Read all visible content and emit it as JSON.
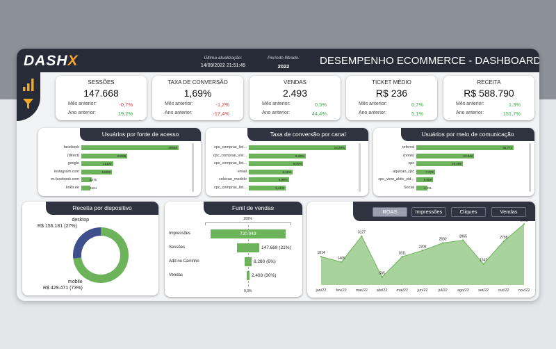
{
  "header": {
    "logo_text": "DASH",
    "logo_accent": "X",
    "updated_label": "Última atualização:",
    "updated_value": "14/09/2022 21:51:45",
    "period_label": "Período filtrado:",
    "period_value": "2022",
    "title_bold": "DESEMPENHO ECOMMERCE",
    "title_rest": " - DASHBOARD"
  },
  "kpis": [
    {
      "title": "SESSÕES",
      "value": "147.668",
      "mes_label": "Mês anterior:",
      "mes_value": "-0,7%",
      "ano_label": "Ano anterior:",
      "ano_value": "19,2%"
    },
    {
      "title": "TAXA DE CONVERSÃO",
      "value": "1,69%",
      "mes_label": "Mês anterior:",
      "mes_value": "-1,2%",
      "ano_label": "Ano anterior:",
      "ano_value": "-17,4%"
    },
    {
      "title": "VENDAS",
      "value": "2.493",
      "mes_label": "Mês anterior:",
      "mes_value": "0,5%",
      "ano_label": "Ano anterior:",
      "ano_value": "44,4%"
    },
    {
      "title": "TICKET MÉDIO",
      "value": "R$ 236",
      "mes_label": "Mês anterior:",
      "mes_value": "0,7%",
      "ano_label": "Ano anterior:",
      "ano_value": "5,1%"
    },
    {
      "title": "RECEITA",
      "value": "R$ 588.790",
      "mes_label": "Mês anterior:",
      "mes_value": "1,3%",
      "ano_label": "Ano anterior:",
      "ano_value": "151,7%"
    }
  ],
  "usuarios_fonte": {
    "title": "Usuários por fonte de acesso",
    "rows": [
      {
        "label": "facebook",
        "value": 49368,
        "text": "49368"
      },
      {
        "label": "(direct)",
        "value": 23368,
        "text": "23368"
      },
      {
        "label": "google",
        "value": 16102,
        "text": "16102"
      },
      {
        "label": "instagram.com",
        "value": 15508,
        "text": "15508"
      },
      {
        "label": "m.facebook.com",
        "value": 5376,
        "text": "5376"
      },
      {
        "label": "linktr.ee",
        "value": 4624,
        "text": "4624"
      }
    ]
  },
  "taxa_canal": {
    "title": "Taxa de conversão por canal",
    "rows": [
      {
        "label": "cpc_compras_list...",
        "value": 14.29,
        "text": "14,29%"
      },
      {
        "label": "cpc_compras_visi...",
        "value": 8.33,
        "text": "8,33%"
      },
      {
        "label": "cpc_compras_list...",
        "value": 8.0,
        "text": "8,00%"
      },
      {
        "label": "email",
        "value": 6.46,
        "text": "6,46%"
      },
      {
        "label": "colecao_modelo",
        "value": 5.88,
        "text": "5,88%"
      },
      {
        "label": "cpc_compras_list...",
        "value": 5.41,
        "text": "5,41%"
      }
    ]
  },
  "usuarios_meio": {
    "title": "Usuários por meio de comunicação",
    "rows": [
      {
        "label": "referral",
        "value": 38771,
        "text": "38.771"
      },
      {
        "label": "(none)",
        "value": 23046,
        "text": "23.046"
      },
      {
        "label": "cpc",
        "value": 18496,
        "text": "18.496"
      },
      {
        "label": "aquicao_cpc",
        "value": 7378,
        "text": "7.378"
      },
      {
        "label": "cpc_view_aktiv_vid...",
        "value": 6608,
        "text": "6.608"
      },
      {
        "label": "Social",
        "value": 4331,
        "text": "4.331"
      }
    ]
  },
  "receita_dispositivo": {
    "title": "Receita por dispositivo",
    "desktop_label": "desktop",
    "desktop_value": "R$ 156.181 (27%)",
    "mobile_label": "mobile",
    "mobile_value": "R$ 429.471 (73%)",
    "desktop_pct": 27,
    "mobile_pct": 73,
    "colors": {
      "desktop": "#3f4f8c",
      "mobile": "#6db35b"
    }
  },
  "funil": {
    "title": "Funil de vendas",
    "top_pct": "100%",
    "bottom_pct": "0,3%",
    "rows": [
      {
        "label": "Impressões",
        "value": 720049,
        "text": "720.049"
      },
      {
        "label": "Sessões",
        "value": 147668,
        "text": "147.668 (21%)"
      },
      {
        "label": "Add no Carrinho",
        "value": 8280,
        "text": "8.280 (6%)"
      },
      {
        "label": "Vendas",
        "value": 2493,
        "text": "2.493 (30%)"
      }
    ]
  },
  "tabs": [
    "ROAS",
    "Impressões",
    "Cliques",
    "Vendas"
  ],
  "chart_data": {
    "type": "area",
    "title": "ROAS",
    "categories": [
      "jan/22",
      "fev/22",
      "mar/22",
      "abr/22",
      "mai/22",
      "jun/22",
      "jul/22",
      "ago/22",
      "set/22",
      "out/22",
      "nov/22"
    ],
    "values": [
      1814,
      1465,
      3127,
      505,
      1811,
      2208,
      2692,
      2865,
      1347,
      2798,
      3892
    ],
    "labels": [
      "1814",
      "1465",
      "3127",
      "505",
      "1811",
      "2208",
      "2692",
      "2865",
      "1347",
      "2798",
      "3892"
    ],
    "ylim": [
      0,
      4000
    ],
    "colors": {
      "fill": "#a9d39c",
      "line": "#6db35b"
    }
  }
}
